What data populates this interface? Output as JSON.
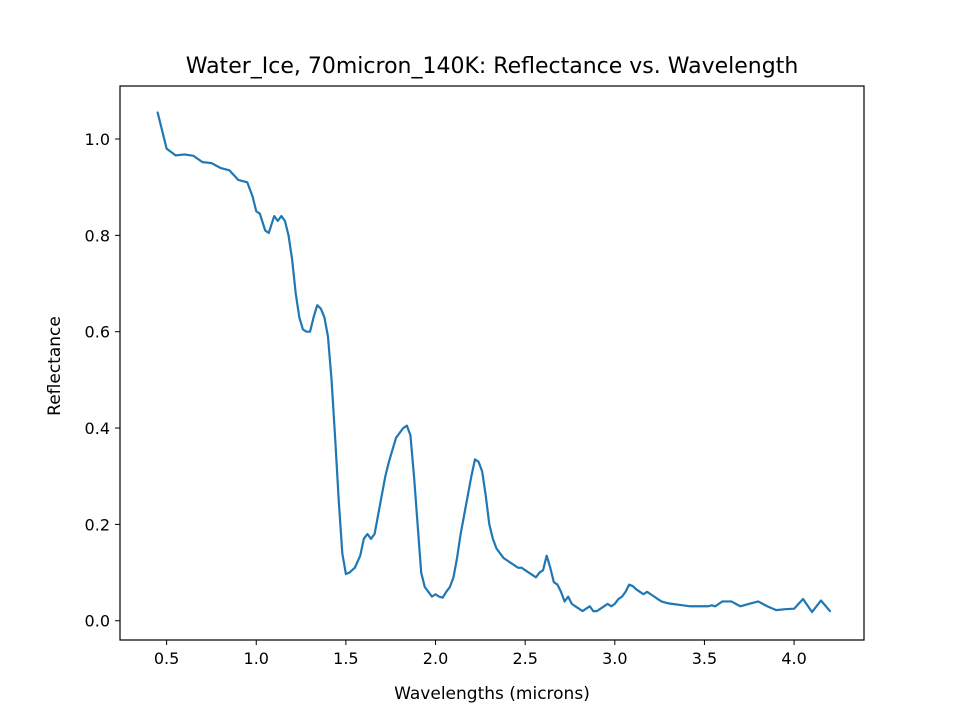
{
  "chart_data": {
    "type": "line",
    "title": "Water_Ice, 70micron_140K: Reflectance vs. Wavelength",
    "xlabel": "Wavelengths (microns)",
    "ylabel": "Reflectance",
    "xlim": [
      0.24,
      4.39
    ],
    "ylim": [
      -0.04,
      1.11
    ],
    "x_ticks": [
      0.5,
      1.0,
      1.5,
      2.0,
      2.5,
      3.0,
      3.5,
      4.0
    ],
    "x_tick_labels": [
      "0.5",
      "1.0",
      "1.5",
      "2.0",
      "2.5",
      "3.0",
      "3.5",
      "4.0"
    ],
    "y_ticks": [
      0.0,
      0.2,
      0.4,
      0.6,
      0.8,
      1.0
    ],
    "y_tick_labels": [
      "0.0",
      "0.2",
      "0.4",
      "0.6",
      "0.8",
      "1.0"
    ],
    "grid": false,
    "legend": "none",
    "series": [
      {
        "color": "#1f77b4",
        "x": [
          0.45,
          0.5,
          0.55,
          0.6,
          0.65,
          0.7,
          0.75,
          0.8,
          0.85,
          0.9,
          0.95,
          0.98,
          1.0,
          1.02,
          1.05,
          1.07,
          1.1,
          1.12,
          1.14,
          1.16,
          1.18,
          1.2,
          1.22,
          1.24,
          1.26,
          1.28,
          1.3,
          1.32,
          1.34,
          1.36,
          1.38,
          1.4,
          1.42,
          1.44,
          1.46,
          1.48,
          1.5,
          1.52,
          1.55,
          1.58,
          1.6,
          1.62,
          1.64,
          1.66,
          1.68,
          1.7,
          1.72,
          1.74,
          1.76,
          1.78,
          1.8,
          1.82,
          1.84,
          1.86,
          1.88,
          1.9,
          1.92,
          1.94,
          1.96,
          1.98,
          2.0,
          2.02,
          2.04,
          2.06,
          2.08,
          2.1,
          2.12,
          2.14,
          2.16,
          2.18,
          2.2,
          2.22,
          2.24,
          2.26,
          2.28,
          2.3,
          2.32,
          2.34,
          2.36,
          2.38,
          2.4,
          2.42,
          2.44,
          2.46,
          2.48,
          2.5,
          2.52,
          2.54,
          2.56,
          2.58,
          2.6,
          2.62,
          2.64,
          2.66,
          2.68,
          2.7,
          2.72,
          2.74,
          2.76,
          2.78,
          2.8,
          2.82,
          2.84,
          2.86,
          2.88,
          2.9,
          2.92,
          2.94,
          2.96,
          2.98,
          3.0,
          3.02,
          3.04,
          3.06,
          3.08,
          3.1,
          3.12,
          3.14,
          3.16,
          3.18,
          3.2,
          3.22,
          3.24,
          3.26,
          3.28,
          3.3,
          3.32,
          3.34,
          3.36,
          3.38,
          3.4,
          3.42,
          3.44,
          3.46,
          3.48,
          3.5,
          3.52,
          3.54,
          3.56,
          3.58,
          3.6,
          3.65,
          3.7,
          3.75,
          3.8,
          3.85,
          3.9,
          3.95,
          4.0,
          4.05,
          4.1,
          4.15,
          4.2
        ],
        "values": [
          1.055,
          0.98,
          0.966,
          0.968,
          0.965,
          0.952,
          0.95,
          0.94,
          0.935,
          0.915,
          0.91,
          0.88,
          0.85,
          0.845,
          0.81,
          0.805,
          0.84,
          0.83,
          0.84,
          0.83,
          0.8,
          0.75,
          0.68,
          0.63,
          0.605,
          0.6,
          0.6,
          0.63,
          0.655,
          0.648,
          0.63,
          0.59,
          0.5,
          0.38,
          0.25,
          0.14,
          0.097,
          0.1,
          0.11,
          0.135,
          0.17,
          0.18,
          0.17,
          0.18,
          0.22,
          0.26,
          0.3,
          0.33,
          0.355,
          0.38,
          0.39,
          0.4,
          0.405,
          0.385,
          0.3,
          0.2,
          0.1,
          0.07,
          0.06,
          0.05,
          0.055,
          0.05,
          0.048,
          0.06,
          0.07,
          0.09,
          0.13,
          0.18,
          0.22,
          0.26,
          0.3,
          0.335,
          0.33,
          0.31,
          0.26,
          0.2,
          0.17,
          0.15,
          0.14,
          0.13,
          0.125,
          0.12,
          0.115,
          0.11,
          0.11,
          0.105,
          0.1,
          0.095,
          0.09,
          0.1,
          0.105,
          0.135,
          0.11,
          0.08,
          0.075,
          0.06,
          0.04,
          0.05,
          0.035,
          0.03,
          0.025,
          0.02,
          0.025,
          0.03,
          0.02,
          0.02,
          0.025,
          0.03,
          0.035,
          0.03,
          0.035,
          0.045,
          0.05,
          0.06,
          0.075,
          0.072,
          0.065,
          0.06,
          0.055,
          0.06,
          0.055,
          0.05,
          0.045,
          0.04,
          0.038,
          0.036,
          0.035,
          0.034,
          0.033,
          0.032,
          0.031,
          0.03,
          0.03,
          0.03,
          0.03,
          0.03,
          0.03,
          0.032,
          0.03,
          0.035,
          0.04,
          0.04,
          0.03,
          0.035,
          0.04,
          0.03,
          0.022,
          0.024,
          0.025,
          0.045,
          0.018,
          0.042,
          0.02
        ]
      }
    ]
  }
}
